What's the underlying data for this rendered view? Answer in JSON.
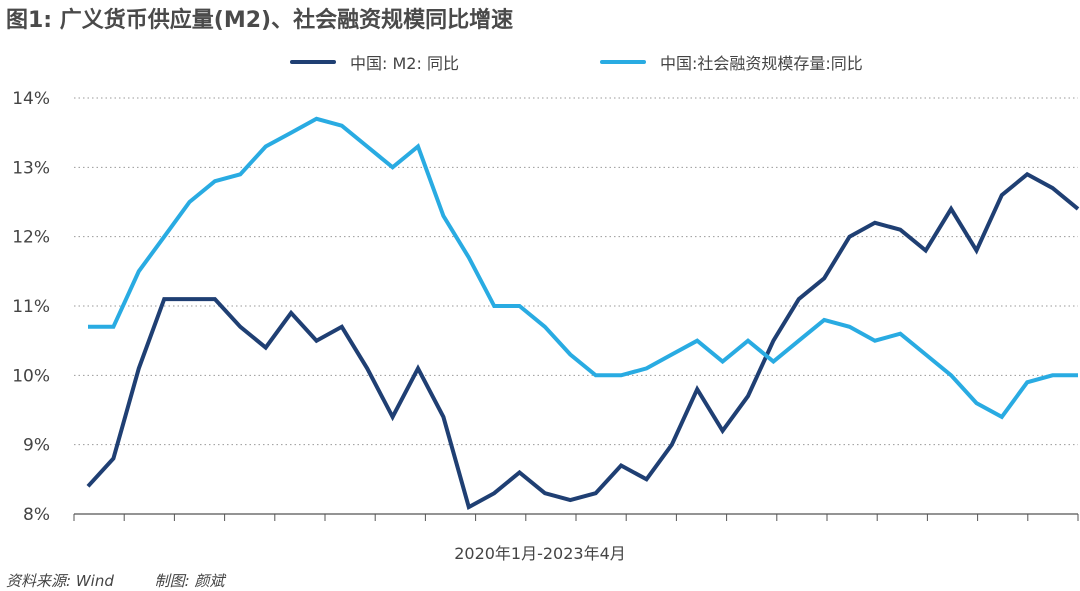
{
  "title": "图1: 广义货币供应量(M2)、社会融资规模同比增速",
  "source_label": "资料来源: Wind",
  "author_label": "制图: 颜斌",
  "chart_data": {
    "type": "line",
    "xlabel": "2020年1月-2023年4月",
    "ylabel": "",
    "ylim": [
      8,
      14
    ],
    "yticks": [
      "8%",
      "9%",
      "10%",
      "11%",
      "12%",
      "13%",
      "14%"
    ],
    "ytick_values": [
      8,
      9,
      10,
      11,
      12,
      13,
      14
    ],
    "grid": "horizontal-dotted",
    "legend_position": "top",
    "x": [
      "2020-01",
      "2020-02",
      "2020-03",
      "2020-04",
      "2020-05",
      "2020-06",
      "2020-07",
      "2020-08",
      "2020-09",
      "2020-10",
      "2020-11",
      "2020-12",
      "2021-01",
      "2021-02",
      "2021-03",
      "2021-04",
      "2021-05",
      "2021-06",
      "2021-07",
      "2021-08",
      "2021-09",
      "2021-10",
      "2021-11",
      "2021-12",
      "2022-01",
      "2022-02",
      "2022-03",
      "2022-04",
      "2022-05",
      "2022-06",
      "2022-07",
      "2022-08",
      "2022-09",
      "2022-10",
      "2022-11",
      "2022-12",
      "2023-01",
      "2023-02",
      "2023-03",
      "2023-04"
    ],
    "series": [
      {
        "name": "中国: M2: 同比",
        "color": "#1f3f73",
        "values": [
          8.4,
          8.8,
          10.1,
          11.1,
          11.1,
          11.1,
          10.7,
          10.4,
          10.9,
          10.5,
          10.7,
          10.1,
          9.4,
          10.1,
          9.4,
          8.1,
          8.3,
          8.6,
          8.3,
          8.2,
          8.3,
          8.7,
          8.5,
          9.0,
          9.8,
          9.2,
          9.7,
          10.5,
          11.1,
          11.4,
          12.0,
          12.2,
          12.1,
          11.8,
          12.4,
          11.8,
          12.6,
          12.9,
          12.7,
          12.4
        ]
      },
      {
        "name": "中国:社会融资规模存量:同比",
        "color": "#29abe2",
        "values": [
          10.7,
          10.7,
          11.5,
          12.0,
          12.5,
          12.8,
          12.9,
          13.3,
          13.5,
          13.7,
          13.6,
          13.3,
          13.0,
          13.3,
          12.3,
          11.7,
          11.0,
          11.0,
          10.7,
          10.3,
          10.0,
          10.0,
          10.1,
          10.3,
          10.5,
          10.2,
          10.5,
          10.2,
          10.5,
          10.8,
          10.7,
          10.5,
          10.6,
          10.3,
          10.0,
          9.6,
          9.4,
          9.9,
          10.0,
          10.0
        ]
      }
    ]
  }
}
